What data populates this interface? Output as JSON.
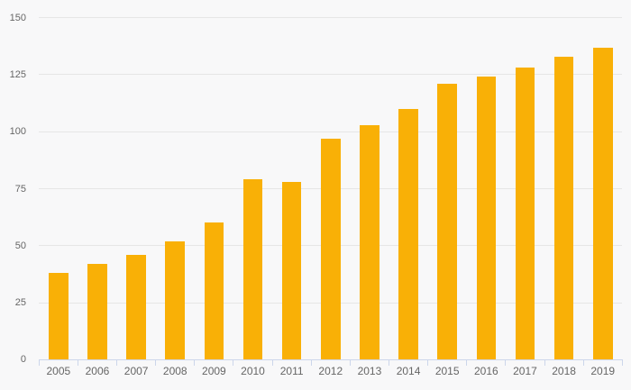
{
  "chart_data": {
    "type": "bar",
    "title": "",
    "categories": [
      "2005",
      "2006",
      "2007",
      "2008",
      "2009",
      "2010",
      "2011",
      "2012",
      "2013",
      "2014",
      "2015",
      "2016",
      "2017",
      "2018",
      "2019"
    ],
    "values": [
      38,
      42,
      46,
      52,
      60,
      79,
      78,
      97,
      103,
      110,
      121,
      124,
      128,
      133,
      137
    ],
    "ylim": [
      0,
      150
    ],
    "yticks": [
      0,
      25,
      50,
      75,
      100,
      125,
      150
    ],
    "grid": true,
    "legend": false,
    "colors": {
      "bar": "#F9B006",
      "background": "#F8F8F9",
      "gridline": "#E6E6E6",
      "axis_line": "#CCD6EB",
      "tick": "#CCD6EB",
      "label": "#666666"
    }
  }
}
